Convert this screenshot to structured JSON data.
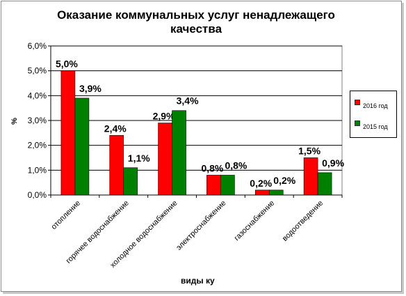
{
  "title_lines": [
    "Оказание коммунальных услуг ненадлежащего",
    "качества"
  ],
  "legend": [
    {
      "label": "2016 год",
      "color": "#ff0000"
    },
    {
      "label": "2015 год",
      "color": "#008000"
    }
  ],
  "chart_data": {
    "type": "bar",
    "title": "Оказание коммунальных услуг ненадлежащего качества",
    "xlabel": "виды ку",
    "ylabel": "%",
    "ylim": [
      0,
      6
    ],
    "y_ticks": [
      "0,0%",
      "1,0%",
      "2,0%",
      "3,0%",
      "4,0%",
      "5,0%",
      "6,0%"
    ],
    "grid": true,
    "legend_position": "right",
    "categories": [
      "отопление",
      "горячее водоснабжение",
      "холодное водоснабжение",
      "электроснабжение",
      "газоснабжение",
      "водоотведение"
    ],
    "series": [
      {
        "name": "2016 год",
        "color": "#ff0000",
        "values": [
          5.0,
          2.4,
          2.9,
          0.8,
          0.2,
          1.5
        ],
        "labels": [
          "5,0%",
          "2,4%",
          "2,9%",
          "0,8%",
          "0,2%",
          "1,5%"
        ]
      },
      {
        "name": "2015 год",
        "color": "#008000",
        "values": [
          3.9,
          1.1,
          3.4,
          0.8,
          0.2,
          0.9
        ],
        "labels": [
          "3,9%",
          "1,1%",
          "3,4%",
          "0,8%",
          "0,2%",
          "0,9%"
        ]
      }
    ]
  }
}
